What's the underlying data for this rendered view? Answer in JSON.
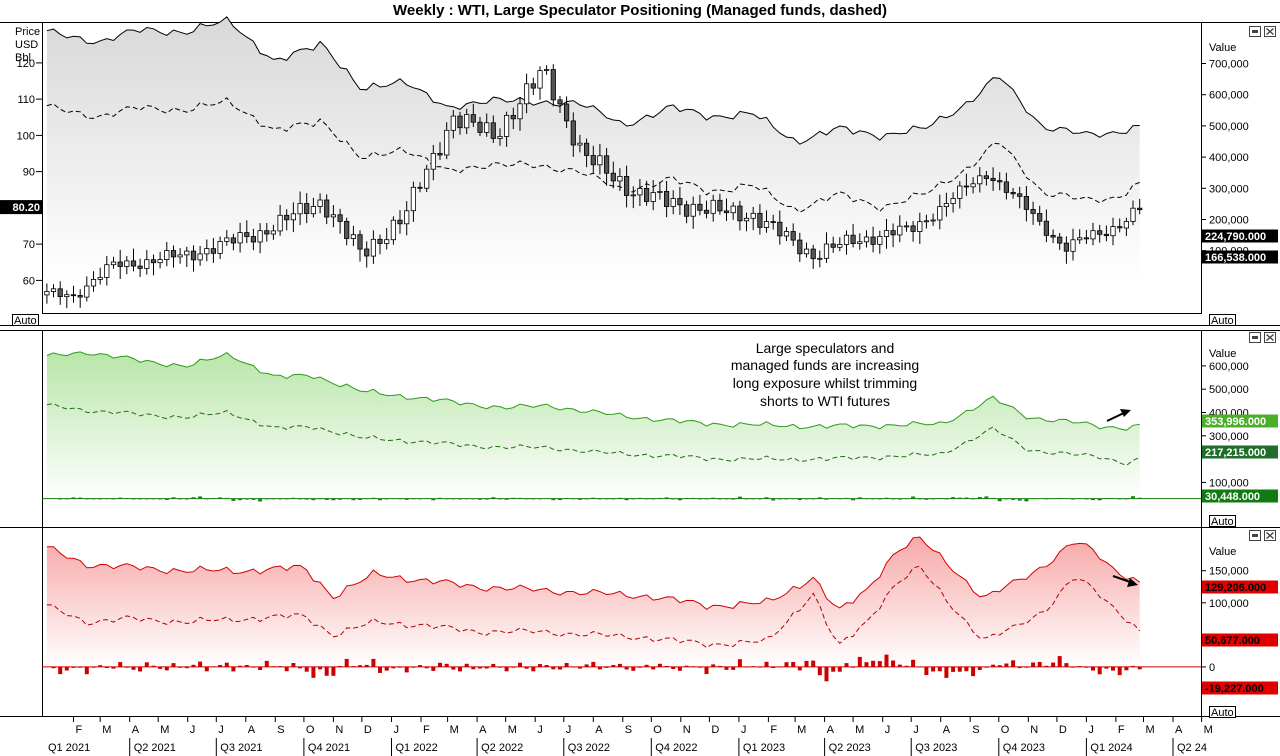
{
  "title": "Weekly : WTI, Large Speculator Positioning (Managed funds, dashed)",
  "chart_data": [
    {
      "type": "candlestick",
      "panel": "price",
      "left_axis": {
        "labels": [
          "Price",
          "USD",
          "Bbl"
        ],
        "ticks": [
          60,
          70,
          80,
          90,
          100,
          110,
          120
        ],
        "range": [
          51,
          131
        ],
        "current_tag": "80.20"
      },
      "right_axis": {
        "label": "Value",
        "ticks": [
          "100,000",
          "200,000",
          "300,000",
          "400,000",
          "500,000",
          "600,000",
          "700,000"
        ],
        "range": [
          -100000,
          830000
        ]
      },
      "ohlc_close_anchors": {
        "x": [
          "2021-02-01",
          "2021-03-15",
          "2021-06-01",
          "2021-08-15",
          "2021-10-20",
          "2021-12-01",
          "2022-01-15",
          "2022-03-07",
          "2022-04-20",
          "2022-06-10",
          "2022-07-20",
          "2022-09-15",
          "2022-11-15",
          "2023-01-15",
          "2023-03-20",
          "2023-05-01",
          "2023-07-01",
          "2023-09-20",
          "2023-12-10",
          "2024-02-01",
          "2024-03-01"
        ],
        "y": [
          56,
          64,
          67,
          73,
          82,
          67,
          78,
          105,
          100,
          118,
          95,
          84,
          80,
          78,
          67,
          71,
          74,
          90,
          69,
          75,
          80.2
        ]
      },
      "series": [
        {
          "name": "Large speculators net",
          "style": "solid",
          "last_value": "224,790.000",
          "x": [
            "2021-01-04",
            "2021-03-01",
            "2021-04-15",
            "2021-06-01",
            "2021-07-15",
            "2021-09-01",
            "2021-10-20",
            "2021-12-01",
            "2022-01-15",
            "2022-03-01",
            "2022-04-15",
            "2022-06-01",
            "2022-07-15",
            "2022-09-01",
            "2022-10-20",
            "2022-12-01",
            "2023-01-15",
            "2023-03-01",
            "2023-04-15",
            "2023-06-01",
            "2023-07-15",
            "2023-09-01",
            "2023-10-01",
            "2023-11-15",
            "2024-01-01",
            "2024-02-01",
            "2024-03-01"
          ],
          "y": [
            520000,
            490000,
            530000,
            520000,
            560000,
            420000,
            490000,
            330000,
            370000,
            270000,
            310000,
            290000,
            300000,
            220000,
            280000,
            250000,
            260000,
            170000,
            210000,
            190000,
            210000,
            300000,
            380000,
            220000,
            190000,
            200000,
            224790
          ]
        },
        {
          "name": "Managed funds net",
          "style": "dashed",
          "last_value": "166,538.000",
          "x": [
            "2021-01-04",
            "2021-03-01",
            "2021-04-15",
            "2021-06-01",
            "2021-07-15",
            "2021-09-01",
            "2021-10-20",
            "2021-12-01",
            "2022-01-15",
            "2022-03-01",
            "2022-04-15",
            "2022-06-01",
            "2022-07-15",
            "2022-09-01",
            "2022-10-20",
            "2022-12-01",
            "2023-01-15",
            "2023-03-01",
            "2023-04-15",
            "2023-06-01",
            "2023-07-15",
            "2023-09-01",
            "2023-10-01",
            "2023-11-15",
            "2024-01-01",
            "2024-02-01",
            "2024-03-01"
          ],
          "y": [
            400000,
            370000,
            400000,
            390000,
            420000,
            320000,
            360000,
            230000,
            270000,
            190000,
            220000,
            210000,
            200000,
            130000,
            170000,
            130000,
            150000,
            70000,
            120000,
            80000,
            120000,
            210000,
            290000,
            130000,
            100000,
            110000,
            166538
          ]
        }
      ]
    },
    {
      "type": "area",
      "panel": "longs",
      "right_axis": {
        "label": "Value",
        "ticks": [
          "100,000",
          "300,000",
          "400,000",
          "500,000",
          "600,000"
        ],
        "range": [
          -40000,
          750000
        ]
      },
      "series": [
        {
          "name": "Large speculators longs",
          "style": "solid",
          "last_value": "353,996.000",
          "x": [
            "2021-01-04",
            "2021-02-15",
            "2021-04-15",
            "2021-06-01",
            "2021-07-15",
            "2021-09-01",
            "2021-10-10",
            "2021-12-01",
            "2022-01-15",
            "2022-03-15",
            "2022-05-01",
            "2022-06-15",
            "2022-08-01",
            "2022-09-15",
            "2022-11-01",
            "2022-12-15",
            "2023-02-01",
            "2023-04-01",
            "2023-06-01",
            "2023-08-01",
            "2023-09-25",
            "2023-11-01",
            "2023-12-15",
            "2024-01-15",
            "2024-02-15",
            "2024-03-01"
          ],
          "y": [
            640000,
            660000,
            620000,
            600000,
            650000,
            550000,
            560000,
            490000,
            470000,
            440000,
            420000,
            430000,
            400000,
            380000,
            360000,
            350000,
            345000,
            340000,
            345000,
            350000,
            460000,
            380000,
            360000,
            340000,
            335000,
            353996
          ]
        },
        {
          "name": "Managed funds longs",
          "style": "dashed",
          "last_value": "217,215.000",
          "x": [
            "2021-01-04",
            "2021-02-15",
            "2021-04-15",
            "2021-06-01",
            "2021-07-15",
            "2021-09-01",
            "2021-10-10",
            "2021-12-01",
            "2022-01-15",
            "2022-03-15",
            "2022-05-01",
            "2022-06-15",
            "2022-08-01",
            "2022-09-15",
            "2022-11-01",
            "2022-12-15",
            "2023-02-01",
            "2023-04-01",
            "2023-06-01",
            "2023-08-01",
            "2023-09-25",
            "2023-11-01",
            "2023-12-15",
            "2024-01-15",
            "2024-02-15",
            "2024-03-01"
          ],
          "y": [
            430000,
            410000,
            390000,
            380000,
            400000,
            330000,
            340000,
            290000,
            280000,
            260000,
            250000,
            250000,
            230000,
            220000,
            210000,
            200000,
            200000,
            200000,
            210000,
            220000,
            330000,
            240000,
            220000,
            210000,
            180000,
            217215
          ]
        },
        {
          "name": "Weekly change",
          "type": "bar",
          "last_value": "30,448.000"
        }
      ]
    },
    {
      "type": "area",
      "panel": "shorts",
      "right_axis": {
        "label": "Value",
        "ticks": [
          "0",
          "100,000",
          "150,000"
        ],
        "range": [
          -75000,
          215000
        ]
      },
      "series": [
        {
          "name": "Large speculators shorts",
          "style": "solid",
          "last_value": "129,206.000",
          "x": [
            "2021-01-04",
            "2021-02-15",
            "2021-04-01",
            "2021-06-01",
            "2021-08-01",
            "2021-10-01",
            "2021-11-01",
            "2021-12-15",
            "2022-02-01",
            "2022-04-01",
            "2022-06-01",
            "2022-08-01",
            "2022-10-01",
            "2022-12-01",
            "2023-02-01",
            "2023-03-20",
            "2023-04-15",
            "2023-05-15",
            "2023-06-15",
            "2023-07-10",
            "2023-08-10",
            "2023-09-15",
            "2023-10-15",
            "2023-11-20",
            "2023-12-20",
            "2024-01-10",
            "2024-02-01",
            "2024-03-01"
          ],
          "y": [
            185000,
            160000,
            155000,
            150000,
            150000,
            155000,
            110000,
            145000,
            135000,
            125000,
            120000,
            115000,
            110000,
            95000,
            100000,
            140000,
            85000,
            120000,
            180000,
            200000,
            160000,
            105000,
            130000,
            160000,
            195000,
            180000,
            150000,
            129206
          ]
        },
        {
          "name": "Managed funds shorts",
          "style": "dashed",
          "last_value": "50,677.000",
          "x": [
            "2021-01-04",
            "2021-02-15",
            "2021-04-01",
            "2021-06-01",
            "2021-08-01",
            "2021-10-01",
            "2021-11-01",
            "2021-12-15",
            "2022-02-01",
            "2022-04-01",
            "2022-06-01",
            "2022-08-01",
            "2022-10-01",
            "2022-12-01",
            "2023-02-01",
            "2023-03-20",
            "2023-04-15",
            "2023-05-15",
            "2023-06-15",
            "2023-07-10",
            "2023-08-10",
            "2023-09-15",
            "2023-10-15",
            "2023-11-20",
            "2023-12-20",
            "2024-01-10",
            "2024-02-01",
            "2024-03-01"
          ],
          "y": [
            95000,
            70000,
            75000,
            70000,
            75000,
            80000,
            50000,
            70000,
            65000,
            55000,
            55000,
            50000,
            45000,
            35000,
            40000,
            115000,
            30000,
            70000,
            130000,
            155000,
            100000,
            40000,
            60000,
            90000,
            140000,
            120000,
            90000,
            50677
          ]
        },
        {
          "name": "Weekly change",
          "type": "bar",
          "last_value": "-19,227.000"
        }
      ]
    }
  ],
  "annotation": [
    "Large speculators and",
    "managed funds are increasing",
    "long exposure whilst trimming",
    "shorts to WTI futures"
  ],
  "x_axis": {
    "months": [
      "F",
      "M",
      "A",
      "M",
      "J",
      "J",
      "A",
      "S",
      "O",
      "N",
      "D",
      "J",
      "F",
      "M",
      "A",
      "M",
      "J",
      "J",
      "A",
      "S",
      "O",
      "N",
      "D",
      "J",
      "F",
      "M",
      "A",
      "M",
      "J",
      "J",
      "A",
      "S",
      "O",
      "N",
      "D",
      "J",
      "F",
      "M",
      "A",
      "M"
    ],
    "quarters": [
      "Q1 2021",
      "Q2 2021",
      "Q3 2021",
      "Q4 2021",
      "Q1 2022",
      "Q2 2022",
      "Q3 2022",
      "Q4 2022",
      "Q1 2023",
      "Q2 2023",
      "Q3 2023",
      "Q4 2023",
      "Q1 2024",
      "Q2 24"
    ]
  },
  "ui": {
    "auto_label": "Auto"
  },
  "colors": {
    "long": "#2e9a1a",
    "short": "#d40000",
    "candle_up": "#ffffff",
    "candle_down": "#555555",
    "price_fill": "#e2e2e2"
  }
}
